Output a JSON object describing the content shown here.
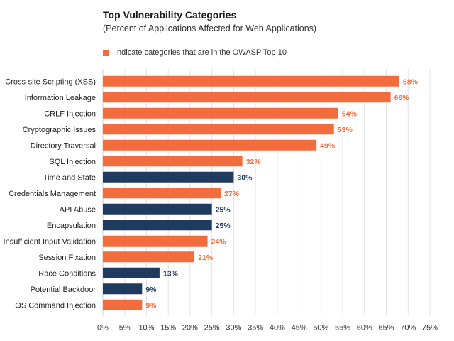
{
  "chart_data": {
    "type": "bar",
    "orientation": "horizontal",
    "title": "Top Vulnerability Categories",
    "subtitle": "(Percent of Applications Affected for Web Applications)",
    "legend": {
      "label": "Indicate categories that are in the OWASP Top 10",
      "color": "#f26d3d",
      "placement": "top-left"
    },
    "colors": {
      "owasp": "#f26d3d",
      "other": "#1f3a5f"
    },
    "categories": [
      "Cross-site Scripting (XSS)",
      "Information Leakage",
      "CRLF Injection",
      "Cryptographic Issues",
      "Directory Traversal",
      "SQL Injection",
      "Time and State",
      "Credentials Management",
      "API Abuse",
      "Encapsulation",
      "Insufficient Input Validation",
      "Session Fixation",
      "Race Conditions",
      "Potential Backdoor",
      "OS Command Injection"
    ],
    "values": [
      68,
      66,
      54,
      53,
      49,
      32,
      30,
      27,
      25,
      25,
      24,
      21,
      13,
      9,
      9
    ],
    "owasp_top10": [
      true,
      true,
      true,
      true,
      true,
      true,
      false,
      true,
      false,
      false,
      true,
      true,
      false,
      false,
      true
    ],
    "value_labels": [
      "68%",
      "66%",
      "54%",
      "53%",
      "49%",
      "32%",
      "30%",
      "27%",
      "25%",
      "25%",
      "24%",
      "21%",
      "13%",
      "9%",
      "9%"
    ],
    "xlim": [
      0,
      75
    ],
    "x_ticks": [
      "0%",
      "5%",
      "10%",
      "15%",
      "20%",
      "25%",
      "30%",
      "35%",
      "40%",
      "45%",
      "50%",
      "55%",
      "60%",
      "65%",
      "70%",
      "75%"
    ],
    "grid": true
  }
}
